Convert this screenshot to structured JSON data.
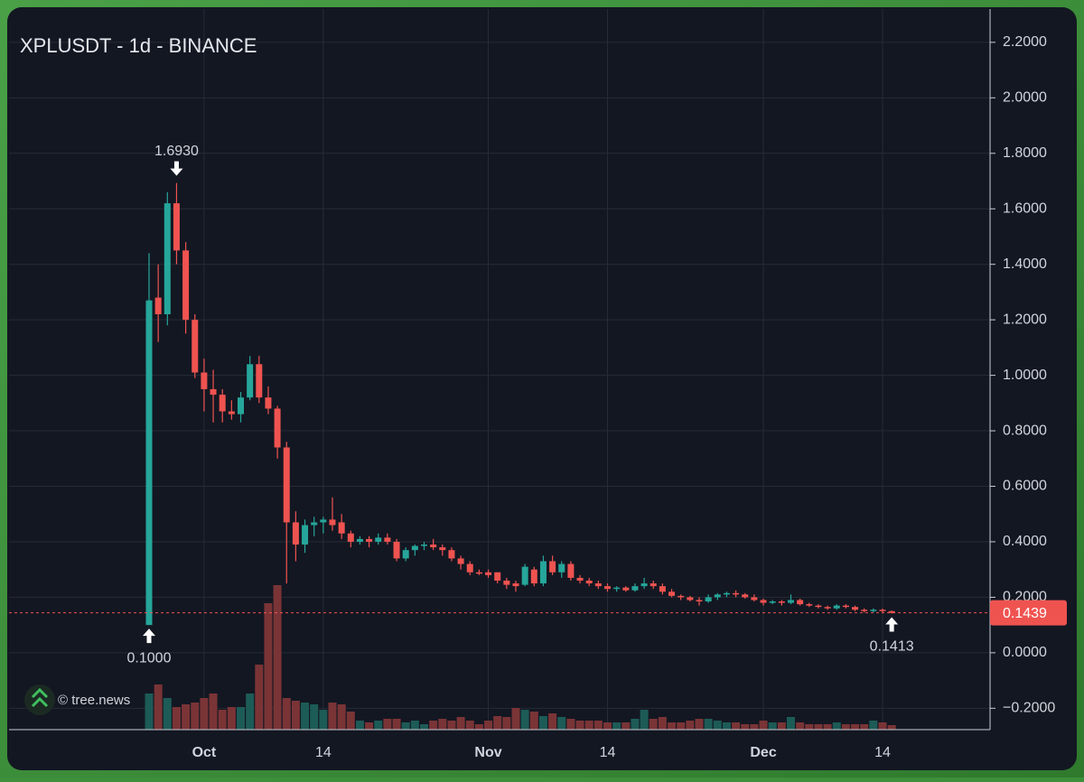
{
  "chart_data": {
    "type": "candlestick",
    "title": "XPLUSDT - 1d - BINANCE",
    "watermark": "© tree.news",
    "categories": [
      null,
      null,
      null,
      null,
      null,
      null,
      "Oct",
      null,
      null,
      null,
      null,
      null,
      null,
      null,
      null,
      null,
      null,
      null,
      null,
      "14",
      null,
      null,
      null,
      null,
      null,
      null,
      null,
      null,
      null,
      null,
      null,
      null,
      null,
      null,
      null,
      null,
      null,
      "Nov",
      null,
      null,
      null,
      null,
      null,
      null,
      null,
      null,
      null,
      null,
      null,
      null,
      "14",
      null,
      null,
      null,
      null,
      null,
      null,
      null,
      null,
      null,
      null,
      null,
      null,
      null,
      null,
      null,
      null,
      "Dec",
      null,
      null,
      null,
      null,
      null,
      null,
      null,
      null,
      null,
      null,
      null,
      null,
      "14",
      null
    ],
    "open": [
      0.1,
      1.28,
      1.22,
      1.62,
      1.45,
      1.2,
      1.01,
      0.95,
      0.93,
      0.87,
      0.86,
      0.92,
      1.04,
      0.92,
      0.88,
      0.74,
      0.47,
      0.39,
      0.46,
      0.47,
      0.48,
      0.47,
      0.43,
      0.4,
      0.41,
      0.4,
      0.415,
      0.4,
      0.34,
      0.37,
      0.385,
      0.39,
      0.38,
      0.37,
      0.34,
      0.32,
      0.29,
      0.29,
      0.29,
      0.26,
      0.25,
      0.245,
      0.3,
      0.25,
      0.33,
      0.29,
      0.32,
      0.27,
      0.26,
      0.25,
      0.24,
      0.23,
      0.235,
      0.225,
      0.24,
      0.25,
      0.24,
      0.22,
      0.205,
      0.2,
      0.19,
      0.185,
      0.2,
      0.21,
      0.215,
      0.21,
      0.2,
      0.19,
      0.18,
      0.185,
      0.18,
      0.19,
      0.175,
      0.17,
      0.165,
      0.16,
      0.17,
      0.165,
      0.155,
      0.15,
      0.155,
      0.15
    ],
    "high": [
      1.44,
      1.4,
      1.66,
      1.693,
      1.48,
      1.22,
      1.06,
      1.02,
      0.95,
      0.91,
      0.94,
      1.07,
      1.07,
      0.96,
      0.89,
      0.76,
      0.51,
      0.48,
      0.49,
      0.49,
      0.56,
      0.5,
      0.44,
      0.42,
      0.42,
      0.43,
      0.43,
      0.41,
      0.38,
      0.39,
      0.4,
      0.41,
      0.39,
      0.38,
      0.35,
      0.33,
      0.3,
      0.3,
      0.29,
      0.27,
      0.26,
      0.32,
      0.31,
      0.35,
      0.35,
      0.33,
      0.33,
      0.28,
      0.27,
      0.26,
      0.25,
      0.24,
      0.24,
      0.25,
      0.27,
      0.26,
      0.25,
      0.23,
      0.21,
      0.205,
      0.2,
      0.21,
      0.215,
      0.22,
      0.225,
      0.215,
      0.21,
      0.195,
      0.19,
      0.19,
      0.21,
      0.195,
      0.18,
      0.175,
      0.17,
      0.175,
      0.175,
      0.17,
      0.16,
      0.16,
      0.16,
      0.152
    ],
    "low": [
      0.1,
      1.12,
      1.18,
      1.4,
      1.15,
      0.99,
      0.87,
      0.83,
      0.83,
      0.84,
      0.83,
      0.91,
      0.9,
      0.86,
      0.7,
      0.25,
      0.33,
      0.36,
      0.42,
      0.43,
      0.44,
      0.41,
      0.38,
      0.39,
      0.38,
      0.39,
      0.39,
      0.33,
      0.33,
      0.35,
      0.37,
      0.37,
      0.35,
      0.33,
      0.3,
      0.28,
      0.28,
      0.27,
      0.25,
      0.23,
      0.22,
      0.24,
      0.24,
      0.24,
      0.28,
      0.27,
      0.26,
      0.25,
      0.24,
      0.23,
      0.22,
      0.22,
      0.22,
      0.22,
      0.23,
      0.23,
      0.21,
      0.2,
      0.19,
      0.185,
      0.17,
      0.18,
      0.19,
      0.2,
      0.2,
      0.195,
      0.185,
      0.17,
      0.175,
      0.17,
      0.175,
      0.17,
      0.165,
      0.16,
      0.155,
      0.155,
      0.16,
      0.15,
      0.145,
      0.145,
      0.145,
      0.1413
    ],
    "close": [
      1.27,
      1.22,
      1.62,
      1.45,
      1.2,
      1.01,
      0.95,
      0.93,
      0.87,
      0.86,
      0.92,
      1.04,
      0.92,
      0.88,
      0.74,
      0.47,
      0.39,
      0.46,
      0.47,
      0.48,
      0.46,
      0.43,
      0.4,
      0.41,
      0.4,
      0.415,
      0.4,
      0.34,
      0.37,
      0.385,
      0.39,
      0.38,
      0.37,
      0.34,
      0.32,
      0.29,
      0.285,
      0.28,
      0.26,
      0.245,
      0.24,
      0.31,
      0.25,
      0.33,
      0.29,
      0.32,
      0.27,
      0.26,
      0.25,
      0.24,
      0.23,
      0.235,
      0.225,
      0.24,
      0.25,
      0.24,
      0.22,
      0.205,
      0.2,
      0.19,
      0.185,
      0.2,
      0.21,
      0.215,
      0.21,
      0.2,
      0.19,
      0.18,
      0.185,
      0.18,
      0.19,
      0.175,
      0.17,
      0.165,
      0.16,
      0.17,
      0.165,
      0.155,
      0.15,
      0.155,
      0.15,
      0.1439
    ],
    "volume": [
      40,
      50,
      35,
      25,
      28,
      30,
      35,
      40,
      22,
      25,
      25,
      40,
      72,
      140,
      160,
      35,
      32,
      30,
      28,
      22,
      30,
      28,
      20,
      10,
      8,
      10,
      12,
      12,
      8,
      10,
      6,
      10,
      12,
      10,
      14,
      10,
      6,
      10,
      15,
      14,
      24,
      22,
      20,
      15,
      18,
      14,
      12,
      10,
      10,
      10,
      8,
      8,
      8,
      12,
      22,
      12,
      14,
      8,
      8,
      10,
      12,
      12,
      10,
      8,
      8,
      6,
      6,
      10,
      8,
      8,
      14,
      8,
      6,
      6,
      6,
      8,
      6,
      6,
      6,
      10,
      8,
      5
    ],
    "up_color": "#26a69a",
    "down_color": "#ef5350",
    "volume_up_color": "#1d5b57",
    "volume_down_color": "#7a3436",
    "ylim": [
      -0.277,
      2.32
    ],
    "yticks": [
      {
        "value": 2.2,
        "label": "2.2000"
      },
      {
        "value": 2.0,
        "label": "2.0000"
      },
      {
        "value": 1.8,
        "label": "1.8000"
      },
      {
        "value": 1.6,
        "label": "1.6000"
      },
      {
        "value": 1.4,
        "label": "1.4000"
      },
      {
        "value": 1.2,
        "label": "1.2000"
      },
      {
        "value": 1.0,
        "label": "1.0000"
      },
      {
        "value": 0.8,
        "label": "0.8000"
      },
      {
        "value": 0.6,
        "label": "0.6000"
      },
      {
        "value": 0.4,
        "label": "0.4000"
      },
      {
        "value": 0.2,
        "label": "0.2000"
      },
      {
        "value": 0,
        "label": "0.0000"
      },
      {
        "value": -0.2,
        "label": "−0.2000"
      }
    ],
    "grid": true,
    "high_label": {
      "value": 1.693,
      "label": "1.6930"
    },
    "low_labels": [
      {
        "value": 0.1,
        "label": "0.1000"
      },
      {
        "value": 0.1413,
        "label": "0.1413"
      }
    ],
    "last_price": {
      "value": 0.1439,
      "label": "0.1439"
    }
  }
}
